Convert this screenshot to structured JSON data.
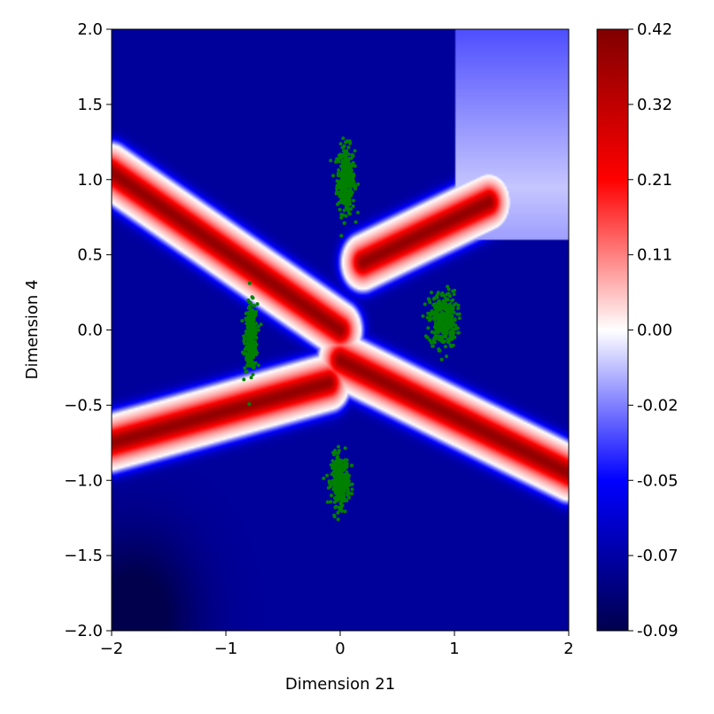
{
  "chart_data": {
    "type": "heatmap",
    "title": "",
    "xlabel": "Dimension 21",
    "ylabel": "Dimension 4",
    "xlim": [
      -2,
      2
    ],
    "ylim": [
      -2,
      2
    ],
    "xticks": [
      -2,
      -1,
      0,
      1,
      2
    ],
    "yticks": [
      -2.0,
      -1.5,
      -1.0,
      -0.5,
      0.0,
      0.5,
      1.0,
      1.5,
      2.0
    ],
    "x_tick_labels": [
      "−2",
      "−1",
      "0",
      "1",
      "2"
    ],
    "y_tick_labels": [
      "−2.0",
      "−1.5",
      "−1.0",
      "−0.5",
      "0.0",
      "0.5",
      "1.0",
      "1.5",
      "2.0"
    ],
    "colormap": "seismic",
    "colorbar": {
      "min": -0.09,
      "max": 0.42,
      "tick_labels": [
        "0.42",
        "0.32",
        "0.21",
        "0.11",
        "0.00",
        "-0.02",
        "-0.05",
        "-0.07",
        "-0.09"
      ]
    },
    "grid": false,
    "field_features": {
      "background_value": -0.07,
      "ridge_branches": [
        {
          "from": [
            -2.0,
            1.05
          ],
          "to": [
            0.0,
            0.0
          ]
        },
        {
          "from": [
            0.0,
            -0.2
          ],
          "to": [
            2.0,
            -0.95
          ]
        },
        {
          "from": [
            -2.0,
            -0.75
          ],
          "to": [
            -0.1,
            -0.35
          ]
        },
        {
          "from": [
            0.2,
            0.45
          ],
          "to": [
            1.3,
            0.85
          ]
        }
      ]
    },
    "scatter_clusters": [
      {
        "center": [
          0.05,
          1.0
        ],
        "spread": [
          0.07,
          0.2
        ],
        "color": "#008000"
      },
      {
        "center": [
          -0.78,
          -0.05
        ],
        "spread": [
          0.05,
          0.2
        ],
        "color": "#008000"
      },
      {
        "center": [
          0.9,
          0.07
        ],
        "spread": [
          0.11,
          0.17
        ],
        "color": "#008000"
      },
      {
        "center": [
          0.0,
          -1.0
        ],
        "spread": [
          0.07,
          0.15
        ],
        "color": "#008000"
      }
    ]
  }
}
